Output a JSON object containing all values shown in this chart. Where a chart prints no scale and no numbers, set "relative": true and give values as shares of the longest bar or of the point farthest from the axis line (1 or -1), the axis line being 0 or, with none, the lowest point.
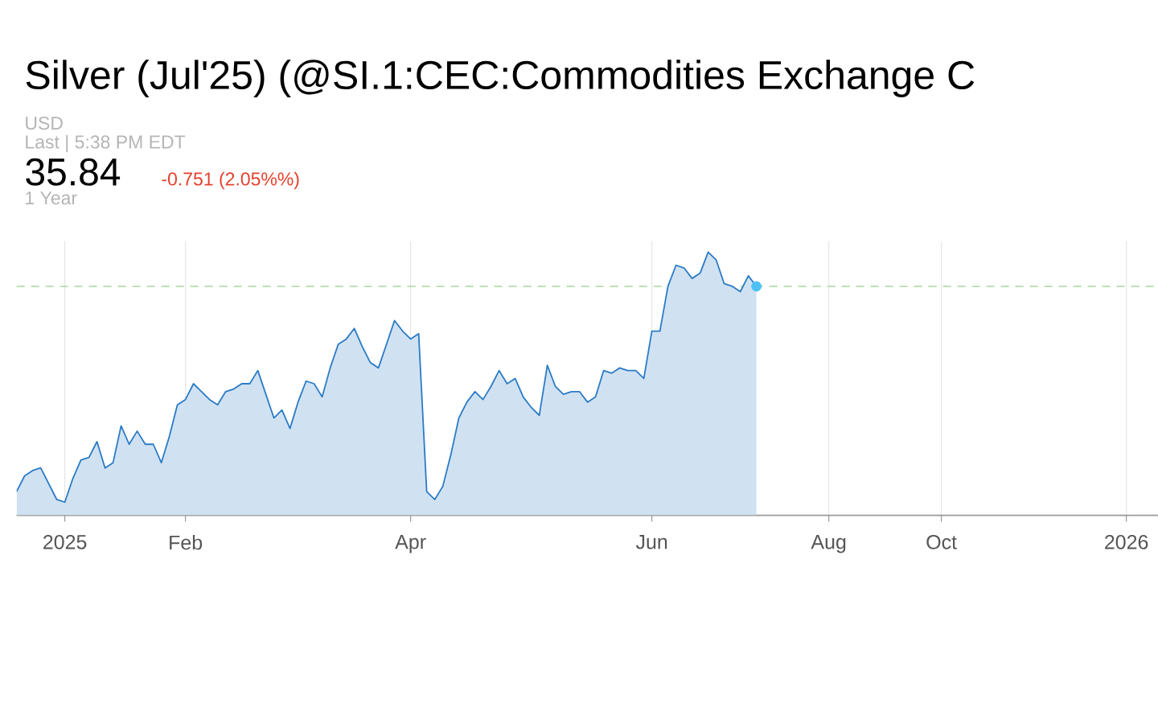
{
  "chart_data": {
    "type": "area",
    "title": "Silver (Jul'25) (@SI.1:CEC:Commodities Exchange C",
    "annotations": [
      "USD",
      "Last | 5:38 PM EDT",
      "35.84",
      "-0.751 (2.05%%)",
      "1 Year"
    ],
    "relative": true,
    "grid": "x",
    "categories": [
      null,
      null,
      null,
      null,
      null,
      null,
      "2025",
      null,
      null,
      null,
      null,
      null,
      null,
      null,
      null,
      null,
      null,
      null,
      null,
      null,
      null,
      "Feb",
      null,
      null,
      null,
      null,
      null,
      null,
      null,
      null,
      null,
      null,
      null,
      null,
      null,
      null,
      null,
      null,
      null,
      null,
      null,
      null,
      null,
      null,
      null,
      null,
      null,
      null,
      null,
      "Apr",
      null,
      null,
      null,
      null,
      null,
      null,
      null,
      null,
      null,
      null,
      null,
      null,
      null,
      null,
      null,
      null,
      null,
      null,
      null,
      null,
      null,
      null,
      null,
      null,
      null,
      null,
      null,
      null,
      null,
      "Jun",
      null,
      null,
      null,
      null,
      null,
      null,
      null,
      null,
      null,
      null,
      null,
      null,
      null,
      null,
      null,
      null,
      null,
      null,
      null,
      null,
      null,
      "Aug",
      null,
      null,
      null,
      null,
      null,
      null,
      null,
      null,
      null,
      null,
      null,
      null,
      null,
      "Oct",
      null,
      null,
      null,
      null,
      null,
      null,
      null,
      null,
      null,
      null,
      null,
      null,
      null,
      null,
      null,
      null,
      null,
      null,
      null,
      null,
      null,
      null,
      "2026",
      null,
      null,
      null
    ],
    "series": [
      {
        "color": "#2b7bc6",
        "values": [
          0.09,
          0.15,
          0.17,
          0.18,
          0.12,
          0.06,
          0.05,
          0.14,
          0.21,
          0.22,
          0.28,
          0.18,
          0.2,
          0.34,
          0.27,
          0.32,
          0.27,
          0.27,
          0.2,
          0.3,
          0.42,
          0.44,
          0.5,
          0.47,
          0.44,
          0.42,
          0.47,
          0.48,
          0.5,
          0.5,
          0.55,
          0.46,
          0.37,
          0.4,
          0.33,
          0.43,
          0.51,
          0.5,
          0.45,
          0.56,
          0.65,
          0.67,
          0.71,
          0.64,
          0.58,
          0.56,
          0.65,
          0.74,
          0.7,
          0.67,
          0.69,
          0.09,
          0.06,
          0.11,
          0.23,
          0.37,
          0.43,
          0.47,
          0.44,
          0.49,
          0.55,
          0.5,
          0.52,
          0.45,
          0.41,
          0.38,
          0.57,
          0.49,
          0.46,
          0.47,
          0.47,
          0.43,
          0.45,
          0.55,
          0.54,
          0.56,
          0.55,
          0.55,
          0.52,
          0.7,
          0.7,
          0.87,
          0.95,
          0.94,
          0.9,
          0.92,
          1.0,
          0.97,
          0.88,
          0.87,
          0.85,
          0.91,
          0.87,
          null,
          null,
          null,
          null,
          null,
          null,
          null,
          null,
          null,
          null,
          null,
          null,
          null,
          null,
          null,
          null,
          null,
          null,
          null,
          null,
          null,
          null,
          null,
          null,
          null,
          null,
          null,
          null,
          null,
          null,
          null,
          null,
          null,
          null,
          null,
          null,
          null,
          null,
          null,
          null,
          null,
          null,
          null,
          null,
          null,
          null,
          null,
          null,
          null
        ]
      },
      {
        "type": "scatter",
        "color": "#4dc0f5",
        "marker": "circle",
        "values": [
          null,
          null,
          null,
          null,
          null,
          null,
          null,
          null,
          null,
          null,
          null,
          null,
          null,
          null,
          null,
          null,
          null,
          null,
          null,
          null,
          null,
          null,
          null,
          null,
          null,
          null,
          null,
          null,
          null,
          null,
          null,
          null,
          null,
          null,
          null,
          null,
          null,
          null,
          null,
          null,
          null,
          null,
          null,
          null,
          null,
          null,
          null,
          null,
          null,
          null,
          null,
          null,
          null,
          null,
          null,
          null,
          null,
          null,
          null,
          null,
          null,
          null,
          null,
          null,
          null,
          null,
          null,
          null,
          null,
          null,
          null,
          null,
          null,
          null,
          null,
          null,
          null,
          null,
          null,
          null,
          null,
          null,
          null,
          null,
          null,
          null,
          null,
          null,
          null,
          null,
          null,
          null,
          0.87,
          null,
          null,
          null,
          null,
          null,
          null,
          null,
          null,
          null,
          null,
          null,
          null,
          null,
          null,
          null,
          null,
          null,
          null,
          null,
          null,
          null,
          null,
          null,
          null,
          null,
          null,
          null,
          null,
          null,
          null,
          null,
          null,
          null,
          null,
          null,
          null,
          null,
          null,
          null,
          null,
          null,
          null,
          null,
          null,
          null,
          null,
          null,
          null,
          null
        ]
      }
    ],
    "ref_lines": [
      {
        "axis": "y",
        "value": 0.87,
        "color": "#a5d99b",
        "line_style": "dashed"
      }
    ]
  }
}
